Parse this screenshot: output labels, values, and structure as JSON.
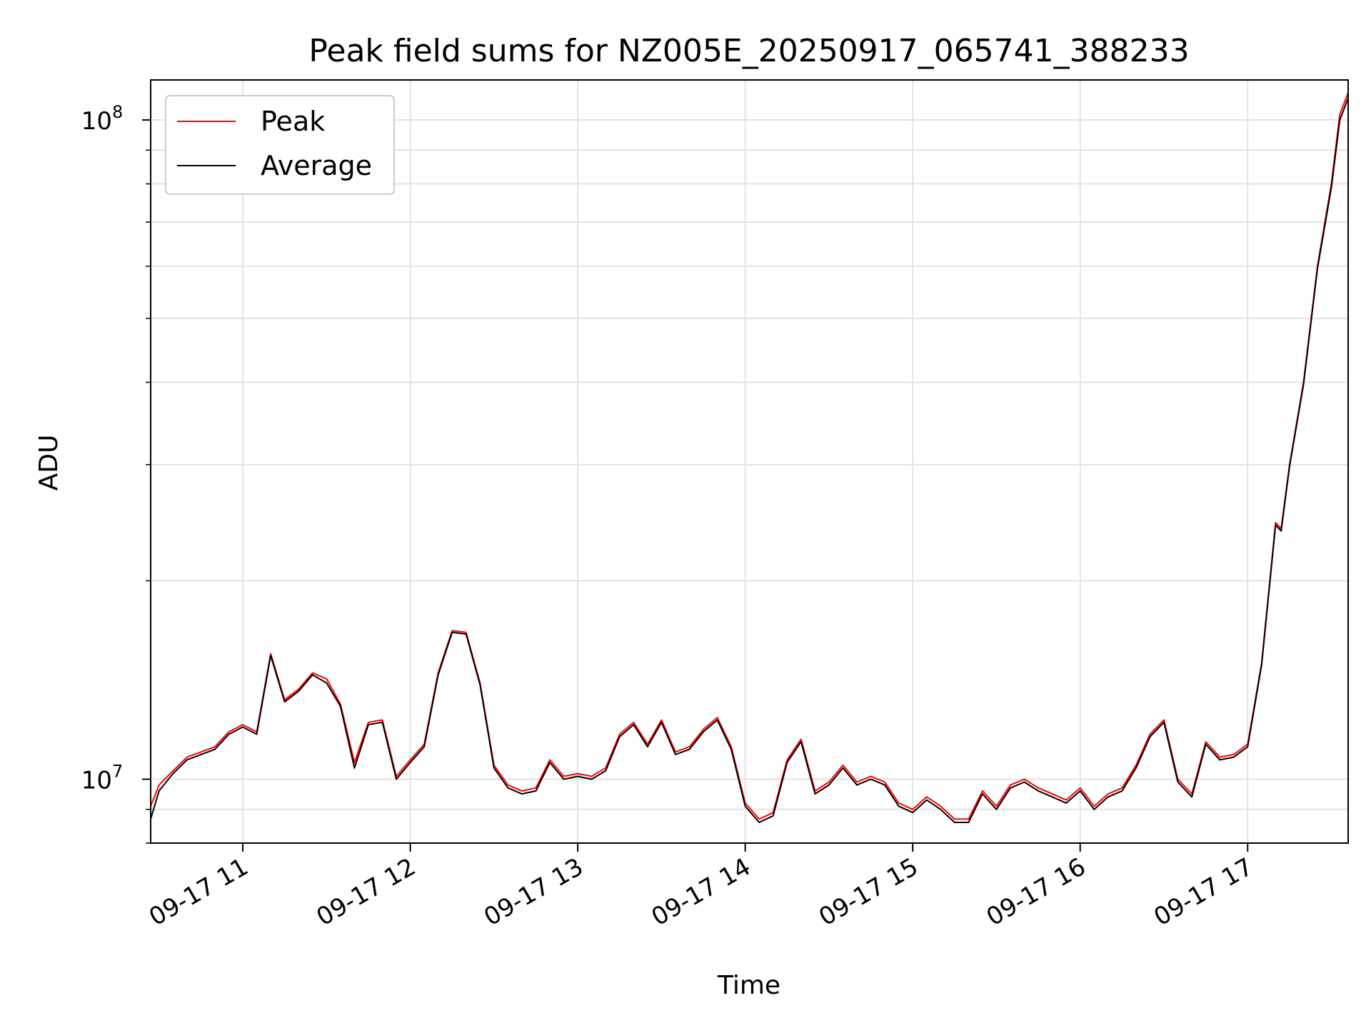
{
  "chart_data": {
    "type": "line",
    "title": "Peak field sums for NZ005E_20250917_065741_388233",
    "xlabel": "Time",
    "ylabel": "ADU",
    "yscale": "log",
    "ylim": [
      8000000,
      115000000
    ],
    "xlim": [
      "2025-09-17 10:27",
      "2025-09-17 17:36"
    ],
    "grid": true,
    "legend": "top-left",
    "x_ticks": [
      "09-17 11",
      "09-17 12",
      "09-17 13",
      "09-17 14",
      "09-17 15",
      "09-17 16",
      "09-17 17"
    ],
    "y_ticks": [
      {
        "value": 10000000,
        "base": "10",
        "exp": "7"
      },
      {
        "value": 100000000,
        "base": "10",
        "exp": "8"
      }
    ],
    "x": [
      "10:27",
      "10:30",
      "10:35",
      "10:40",
      "10:45",
      "10:50",
      "10:55",
      "11:00",
      "11:05",
      "11:10",
      "11:15",
      "11:20",
      "11:25",
      "11:30",
      "11:35",
      "11:40",
      "11:45",
      "11:50",
      "11:55",
      "12:00",
      "12:05",
      "12:10",
      "12:15",
      "12:20",
      "12:25",
      "12:30",
      "12:35",
      "12:40",
      "12:45",
      "12:50",
      "12:55",
      "13:00",
      "13:05",
      "13:10",
      "13:15",
      "13:20",
      "13:25",
      "13:30",
      "13:35",
      "13:40",
      "13:45",
      "13:50",
      "13:55",
      "14:00",
      "14:05",
      "14:10",
      "14:15",
      "14:20",
      "14:25",
      "14:30",
      "14:35",
      "14:40",
      "14:45",
      "14:50",
      "14:55",
      "15:00",
      "15:05",
      "15:10",
      "15:15",
      "15:20",
      "15:25",
      "15:30",
      "15:35",
      "15:40",
      "15:45",
      "15:50",
      "15:55",
      "16:00",
      "16:05",
      "16:10",
      "16:15",
      "16:20",
      "16:25",
      "16:30",
      "16:35",
      "16:40",
      "16:45",
      "16:50",
      "16:55",
      "17:00",
      "17:05",
      "17:10",
      "17:12",
      "17:15",
      "17:20",
      "17:25",
      "17:30",
      "17:33",
      "17:36"
    ],
    "series": [
      {
        "name": "Peak",
        "color": "#ff0000",
        "values": [
          9100000,
          9800000,
          10300000,
          10800000,
          11000000,
          11200000,
          11800000,
          12100000,
          11800000,
          15500000,
          13200000,
          13700000,
          14500000,
          14200000,
          13000000,
          10600000,
          12200000,
          12300000,
          10100000,
          10700000,
          11300000,
          14500000,
          16800000,
          16700000,
          14000000,
          10500000,
          9800000,
          9600000,
          9700000,
          10700000,
          10100000,
          10200000,
          10100000,
          10400000,
          11700000,
          12200000,
          11300000,
          12300000,
          11000000,
          11200000,
          11900000,
          12400000,
          11200000,
          9200000,
          8700000,
          8900000,
          10700000,
          11500000,
          9600000,
          9900000,
          10500000,
          9900000,
          10100000,
          9900000,
          9200000,
          9000000,
          9400000,
          9100000,
          8700000,
          8700000,
          9600000,
          9100000,
          9800000,
          10000000,
          9700000,
          9500000,
          9300000,
          9700000,
          9100000,
          9500000,
          9700000,
          10500000,
          11700000,
          12300000,
          10000000,
          9500000,
          11400000,
          10800000,
          10900000,
          11300000,
          15000000,
          24500000,
          24000000,
          30000000,
          40000000,
          60000000,
          80000000,
          102000000,
          110000000
        ]
      },
      {
        "name": "Average",
        "color": "#000000",
        "values": [
          8700000,
          9600000,
          10200000,
          10700000,
          10900000,
          11100000,
          11700000,
          12000000,
          11700000,
          15400000,
          13100000,
          13600000,
          14400000,
          14000000,
          12900000,
          10400000,
          12100000,
          12200000,
          10000000,
          10600000,
          11200000,
          14400000,
          16700000,
          16600000,
          13900000,
          10400000,
          9700000,
          9500000,
          9600000,
          10600000,
          10000000,
          10100000,
          10000000,
          10300000,
          11600000,
          12100000,
          11200000,
          12200000,
          10900000,
          11100000,
          11800000,
          12300000,
          11100000,
          9100000,
          8600000,
          8800000,
          10600000,
          11400000,
          9500000,
          9800000,
          10400000,
          9800000,
          10000000,
          9800000,
          9100000,
          8900000,
          9300000,
          9000000,
          8600000,
          8600000,
          9500000,
          9000000,
          9700000,
          9900000,
          9600000,
          9400000,
          9200000,
          9600000,
          9000000,
          9400000,
          9600000,
          10400000,
          11600000,
          12200000,
          9900000,
          9400000,
          11300000,
          10700000,
          10800000,
          11200000,
          14900000,
          24300000,
          23800000,
          29800000,
          39700000,
          59500000,
          79000000,
          100000000,
          108000000
        ]
      }
    ]
  }
}
